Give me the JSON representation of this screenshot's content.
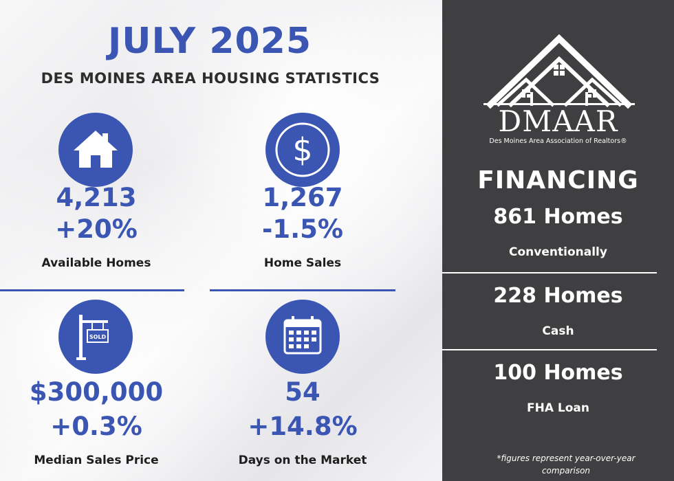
{
  "header": {
    "title": "JULY 2025",
    "subtitle": "DES MOINES AREA HOUSING STATISTICS"
  },
  "colors": {
    "accent": "#3a55b2",
    "panel": "#3f3f41",
    "text_dark": "#1e1e1e"
  },
  "stats": [
    {
      "icon": "house-icon",
      "value": "4,213",
      "change": "+20%",
      "label": "Available Homes"
    },
    {
      "icon": "dollar-icon",
      "value": "1,267",
      "change": "-1.5%",
      "label": "Home Sales"
    },
    {
      "icon": "sold-sign-icon",
      "value": "$300,000",
      "change": "+0.3%",
      "label": "Median Sales Price"
    },
    {
      "icon": "calendar-icon",
      "value": "54",
      "change": "+14.8%",
      "label": "Days on the Market"
    }
  ],
  "sidebar": {
    "logo_icon": "house-roofs-logo-icon",
    "logo_text": "DMAAR",
    "logo_tagline": "Des Moines Area Association of Realtors®",
    "heading": "FINANCING",
    "items": [
      {
        "value": "861 Homes",
        "label": "Conventionally"
      },
      {
        "value": "228 Homes",
        "label": "Cash"
      },
      {
        "value": "100 Homes",
        "label": "FHA Loan"
      }
    ],
    "footnote": "*figures represent year-over-year comparison"
  }
}
